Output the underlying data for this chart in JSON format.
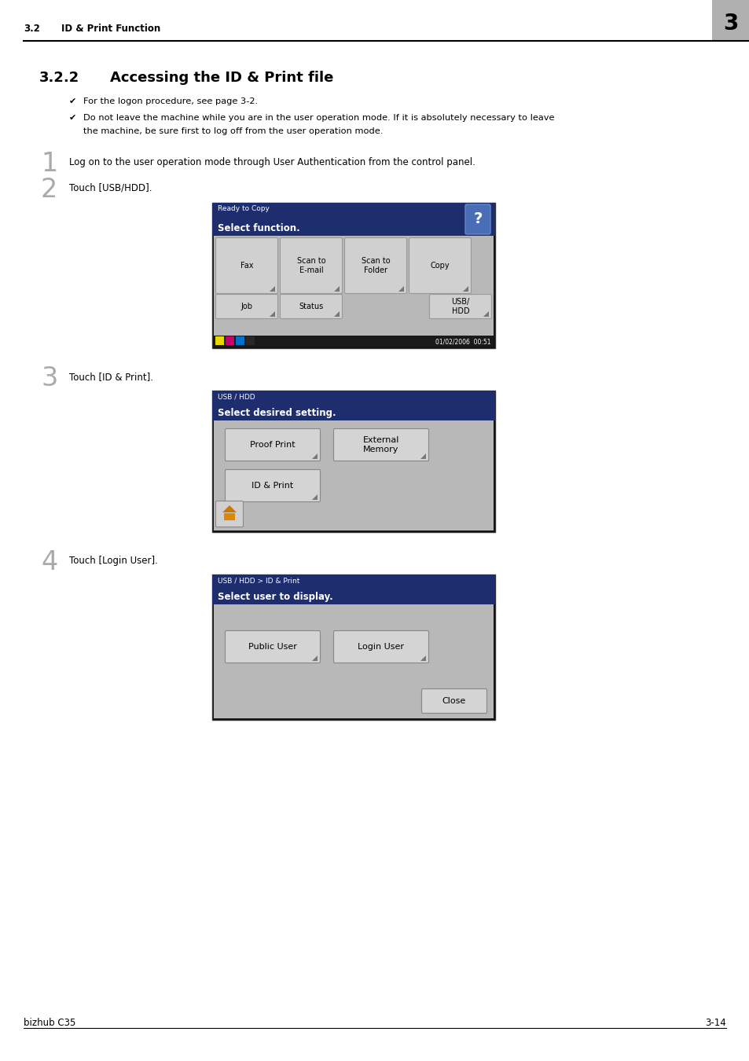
{
  "page_bg": "#ffffff",
  "header_section": "3.2",
  "header_title": "ID & Print Function",
  "header_number": "3",
  "header_number_bg": "#b0b0b0",
  "section_number": "3.2.2",
  "section_title": "Accessing the ID & Print file",
  "bullet1": "For the logon procedure, see page 3-2.",
  "bullet2_line1": "Do not leave the machine while you are in the user operation mode. If it is absolutely necessary to leave",
  "bullet2_line2": "the machine, be sure first to log off from the user operation mode.",
  "step1_num": "1",
  "step1_text": "Log on to the user operation mode through User Authentication from the control panel.",
  "step2_num": "2",
  "step2_text": "Touch [USB/HDD].",
  "step3_num": "3",
  "step3_text": "Touch [ID & Print].",
  "step4_num": "4",
  "step4_text": "Touch [Login User].",
  "footer_left": "bizhub C35",
  "footer_right": "3-14",
  "screen_nav_bg": "#1e2d6e",
  "screen_body_bg": "#c8c8c8",
  "screen_btn_bg": "#d4d4d4",
  "screen_btn_border": "#888888",
  "screen1_top_text": "Ready to Copy",
  "screen1_sub_text": "Select function.",
  "screen2_top_text": "USB / HDD",
  "screen2_sub_text": "Select desired setting.",
  "screen3_top_text": "USB / HDD > ID & Print",
  "screen3_sub_text": "Select user to display."
}
